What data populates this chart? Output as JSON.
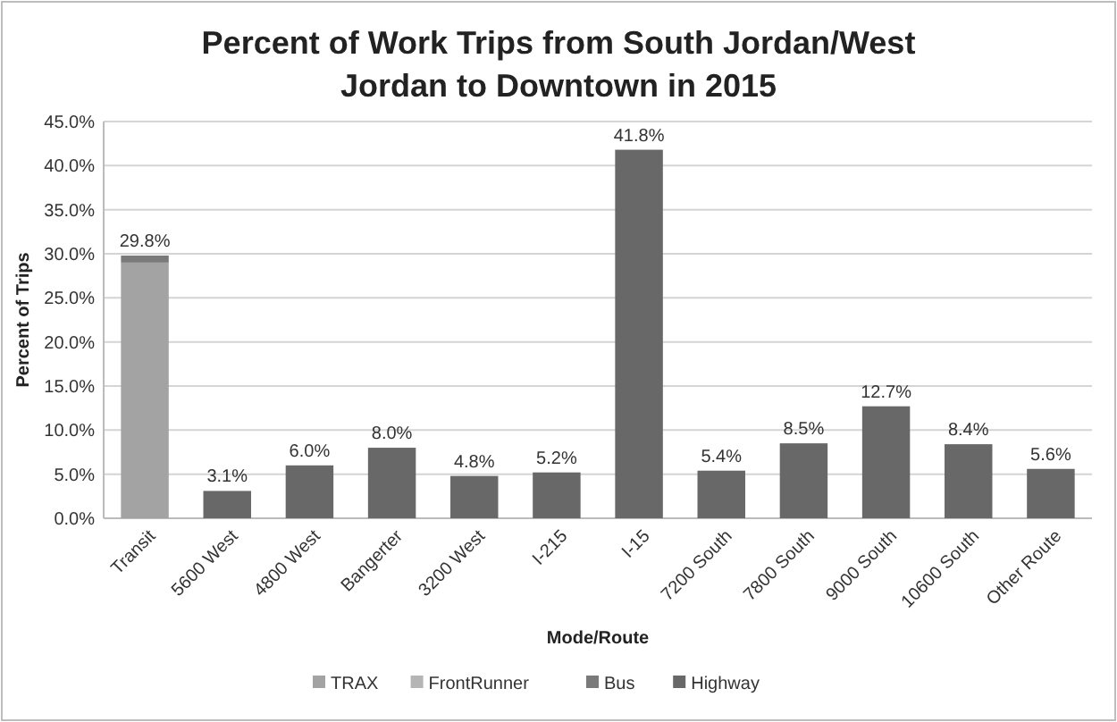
{
  "chart_data": {
    "type": "bar",
    "title": "Percent of Work Trips from South Jordan/West Jordan to Downtown in 2015",
    "xlabel": "Mode/Route",
    "ylabel": "Percent of Trips",
    "categories": [
      "Transit",
      "5600 West",
      "4800 West",
      "Bangerter",
      "3200 West",
      "I-215",
      "I-15",
      "7200 South",
      "7800 South",
      "9000 South",
      "10600 South",
      "Other Route"
    ],
    "stacked": true,
    "series": [
      {
        "name": "TRAX",
        "color": "#a3a3a3",
        "values": [
          29.0,
          null,
          null,
          null,
          null,
          null,
          null,
          null,
          null,
          null,
          null,
          null
        ]
      },
      {
        "name": "FrontRunner",
        "color": "#b5b5b5",
        "values": [
          0,
          null,
          null,
          null,
          null,
          null,
          null,
          null,
          null,
          null,
          null,
          null
        ]
      },
      {
        "name": "Bus",
        "color": "#7a7a7a",
        "values": [
          0.8,
          null,
          null,
          null,
          null,
          null,
          null,
          null,
          null,
          null,
          null,
          null
        ]
      },
      {
        "name": "Highway",
        "color": "#686868",
        "values": [
          null,
          3.1,
          6.0,
          8.0,
          4.8,
          5.2,
          41.8,
          5.4,
          8.5,
          12.7,
          8.4,
          5.6
        ]
      }
    ],
    "totals": [
      "29.8%",
      "3.1%",
      "6.0%",
      "8.0%",
      "4.8%",
      "5.2%",
      "41.8%",
      "5.4%",
      "8.5%",
      "12.7%",
      "8.4%",
      "5.6%"
    ],
    "ylim": [
      0,
      45
    ],
    "yticks": [
      {
        "value": 0,
        "label": "0.0%"
      },
      {
        "value": 5,
        "label": "5.0%"
      },
      {
        "value": 10,
        "label": "10.0%"
      },
      {
        "value": 15,
        "label": "15.0%"
      },
      {
        "value": 20,
        "label": "20.0%"
      },
      {
        "value": 25,
        "label": "25.0%"
      },
      {
        "value": 30,
        "label": "30.0%"
      },
      {
        "value": 35,
        "label": "35.0%"
      },
      {
        "value": 40,
        "label": "40.0%"
      },
      {
        "value": 45,
        "label": "45.0%"
      }
    ],
    "grid": "y",
    "legend": "bottom"
  }
}
